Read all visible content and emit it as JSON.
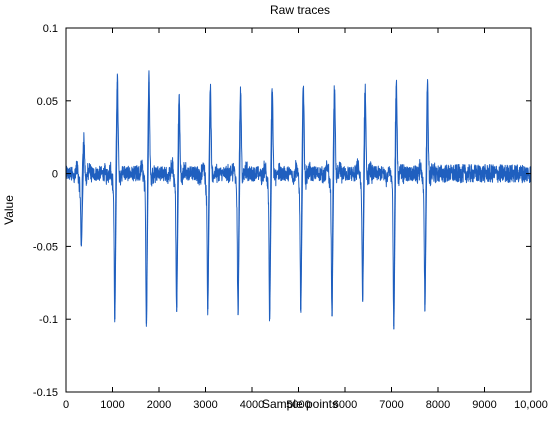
{
  "chart_data": {
    "type": "line",
    "title": "Raw traces",
    "xlabel": "Sample points",
    "ylabel": "Value",
    "xlim": [
      0,
      10000
    ],
    "ylim": [
      -0.15,
      0.1
    ],
    "x_ticks": [
      0,
      1000,
      2000,
      3000,
      4000,
      5000,
      6000,
      7000,
      8000,
      9000,
      10000
    ],
    "x_tick_labels": [
      "0",
      "1000",
      "2000",
      "3000",
      "4000",
      "5000",
      "6000",
      "7000",
      "8000",
      "9000",
      "10,000"
    ],
    "y_ticks": [
      0.1,
      0.05,
      0,
      -0.05,
      -0.1,
      -0.15
    ],
    "y_tick_labels": [
      "0.1",
      "0.05",
      "0",
      "-0.05",
      "-0.1",
      "-0.15"
    ],
    "grid": false,
    "series": [
      {
        "color": "#1f5fbf",
        "baseline_noise_amplitude": 0.006,
        "spikes": [
          {
            "x": 330,
            "min": -0.05,
            "max": 0.02
          },
          {
            "x": 1050,
            "min": -0.1,
            "max": 0.063
          },
          {
            "x": 1730,
            "min": -0.103,
            "max": 0.063
          },
          {
            "x": 2380,
            "min": -0.095,
            "max": 0.048
          },
          {
            "x": 3050,
            "min": -0.093,
            "max": 0.056
          },
          {
            "x": 3700,
            "min": -0.097,
            "max": 0.054
          },
          {
            "x": 4380,
            "min": -0.1,
            "max": 0.056
          },
          {
            "x": 5050,
            "min": -0.093,
            "max": 0.055
          },
          {
            "x": 5720,
            "min": -0.098,
            "max": 0.055
          },
          {
            "x": 6380,
            "min": -0.088,
            "max": 0.055
          },
          {
            "x": 7050,
            "min": -0.107,
            "max": 0.06
          },
          {
            "x": 7720,
            "min": -0.09,
            "max": 0.056
          }
        ]
      }
    ]
  }
}
